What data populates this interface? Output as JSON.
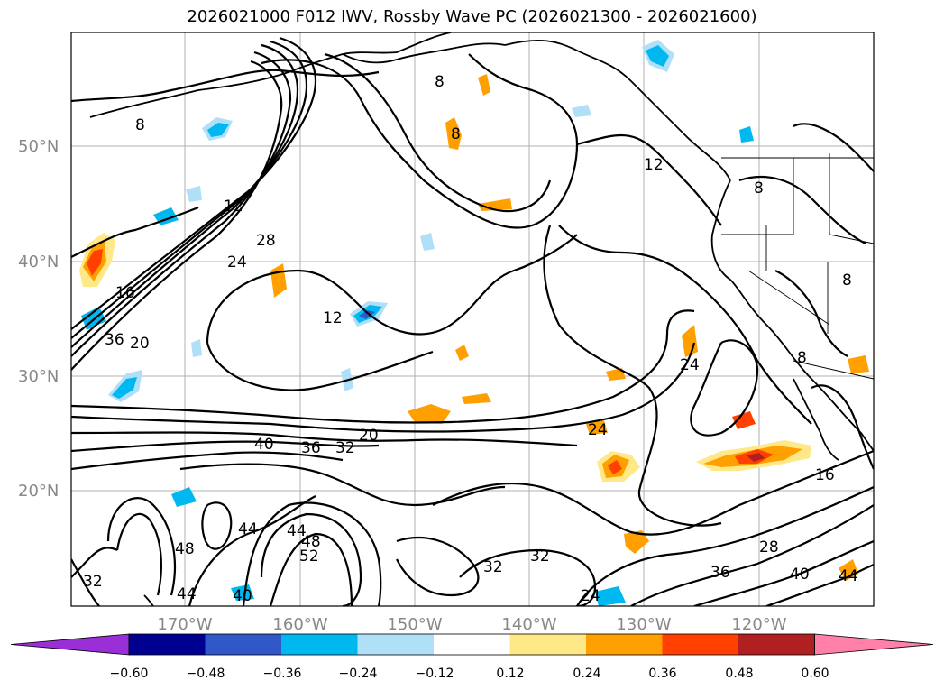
{
  "title": "2026021000 F012 IWV, Rossby Wave PC (2026021300 - 2026021600)",
  "latitude_labels": [
    "50°N",
    "40°N",
    "30°N",
    "20°N"
  ],
  "longitude_labels": [
    "170°W",
    "160°W",
    "150°W",
    "140°W",
    "130°W",
    "120°W"
  ],
  "contour_labels": [
    "8",
    "8",
    "8",
    "12",
    "12",
    "12",
    "16",
    "16",
    "20",
    "20",
    "24",
    "24",
    "24",
    "28",
    "28",
    "32",
    "32",
    "32",
    "32",
    "36",
    "36",
    "36",
    "40",
    "40",
    "40",
    "44",
    "44",
    "44",
    "44",
    "48",
    "48",
    "52",
    "8",
    "8",
    "8",
    "24"
  ],
  "colorbar": {
    "tick_labels": [
      "−0.60",
      "−0.48",
      "−0.36",
      "−0.24",
      "−0.12",
      "0.12",
      "0.24",
      "0.36",
      "0.48",
      "0.60"
    ],
    "colors": [
      "#9a2fd8",
      "#000090",
      "#3058c8",
      "#00b8f0",
      "#b0e0f8",
      "#ffffff",
      "#ffe888",
      "#ffa000",
      "#ff4000",
      "#b02020",
      "#ff80a8"
    ]
  }
}
